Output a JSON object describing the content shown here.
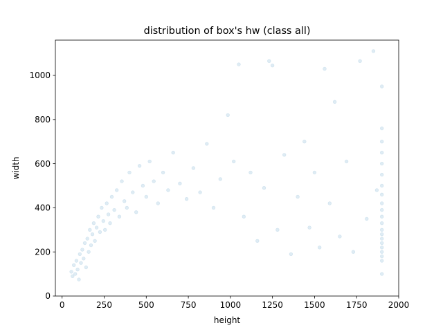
{
  "chart_data": {
    "type": "scatter",
    "title": "distribution of box's hw (class all)",
    "xlabel": "height",
    "ylabel": "width",
    "xlim": [
      -40,
      2000
    ],
    "ylim": [
      0,
      1160
    ],
    "xticks": [
      0,
      250,
      500,
      750,
      1000,
      1250,
      1500,
      1750,
      2000
    ],
    "yticks": [
      0,
      200,
      400,
      600,
      800,
      1000
    ],
    "grid": false,
    "legend": "none",
    "color": "#1f77b4",
    "alpha": 0.15,
    "points": [
      {
        "x": 55,
        "y": 110
      },
      {
        "x": 62,
        "y": 90
      },
      {
        "x": 70,
        "y": 140
      },
      {
        "x": 78,
        "y": 100
      },
      {
        "x": 85,
        "y": 160
      },
      {
        "x": 92,
        "y": 120
      },
      {
        "x": 100,
        "y": 75
      },
      {
        "x": 105,
        "y": 190
      },
      {
        "x": 112,
        "y": 150
      },
      {
        "x": 120,
        "y": 210
      },
      {
        "x": 128,
        "y": 170
      },
      {
        "x": 135,
        "y": 240
      },
      {
        "x": 142,
        "y": 130
      },
      {
        "x": 150,
        "y": 260
      },
      {
        "x": 158,
        "y": 200
      },
      {
        "x": 165,
        "y": 300
      },
      {
        "x": 172,
        "y": 230
      },
      {
        "x": 180,
        "y": 280
      },
      {
        "x": 188,
        "y": 330
      },
      {
        "x": 195,
        "y": 250
      },
      {
        "x": 205,
        "y": 310
      },
      {
        "x": 215,
        "y": 360
      },
      {
        "x": 225,
        "y": 290
      },
      {
        "x": 235,
        "y": 400
      },
      {
        "x": 245,
        "y": 340
      },
      {
        "x": 255,
        "y": 300
      },
      {
        "x": 265,
        "y": 420
      },
      {
        "x": 275,
        "y": 370
      },
      {
        "x": 285,
        "y": 330
      },
      {
        "x": 295,
        "y": 450
      },
      {
        "x": 310,
        "y": 390
      },
      {
        "x": 325,
        "y": 480
      },
      {
        "x": 340,
        "y": 360
      },
      {
        "x": 355,
        "y": 520
      },
      {
        "x": 370,
        "y": 430
      },
      {
        "x": 385,
        "y": 400
      },
      {
        "x": 400,
        "y": 560
      },
      {
        "x": 420,
        "y": 470
      },
      {
        "x": 440,
        "y": 380
      },
      {
        "x": 460,
        "y": 590
      },
      {
        "x": 480,
        "y": 500
      },
      {
        "x": 500,
        "y": 450
      },
      {
        "x": 520,
        "y": 610
      },
      {
        "x": 545,
        "y": 520
      },
      {
        "x": 570,
        "y": 420
      },
      {
        "x": 600,
        "y": 560
      },
      {
        "x": 630,
        "y": 480
      },
      {
        "x": 660,
        "y": 650
      },
      {
        "x": 700,
        "y": 510
      },
      {
        "x": 740,
        "y": 440
      },
      {
        "x": 780,
        "y": 580
      },
      {
        "x": 820,
        "y": 470
      },
      {
        "x": 860,
        "y": 690
      },
      {
        "x": 900,
        "y": 400
      },
      {
        "x": 940,
        "y": 530
      },
      {
        "x": 985,
        "y": 820
      },
      {
        "x": 1020,
        "y": 610
      },
      {
        "x": 1050,
        "y": 1050
      },
      {
        "x": 1080,
        "y": 360
      },
      {
        "x": 1120,
        "y": 560
      },
      {
        "x": 1160,
        "y": 250
      },
      {
        "x": 1200,
        "y": 490
      },
      {
        "x": 1230,
        "y": 1065
      },
      {
        "x": 1250,
        "y": 1045
      },
      {
        "x": 1280,
        "y": 300
      },
      {
        "x": 1320,
        "y": 640
      },
      {
        "x": 1360,
        "y": 190
      },
      {
        "x": 1400,
        "y": 450
      },
      {
        "x": 1440,
        "y": 700
      },
      {
        "x": 1470,
        "y": 310
      },
      {
        "x": 1500,
        "y": 560
      },
      {
        "x": 1530,
        "y": 220
      },
      {
        "x": 1560,
        "y": 1030
      },
      {
        "x": 1590,
        "y": 420
      },
      {
        "x": 1620,
        "y": 880
      },
      {
        "x": 1650,
        "y": 270
      },
      {
        "x": 1690,
        "y": 610
      },
      {
        "x": 1730,
        "y": 200
      },
      {
        "x": 1770,
        "y": 1065
      },
      {
        "x": 1810,
        "y": 350
      },
      {
        "x": 1850,
        "y": 1110
      },
      {
        "x": 1870,
        "y": 480
      },
      {
        "x": 1900,
        "y": 950
      },
      {
        "x": 1900,
        "y": 760
      },
      {
        "x": 1900,
        "y": 700
      },
      {
        "x": 1900,
        "y": 650
      },
      {
        "x": 1900,
        "y": 600
      },
      {
        "x": 1900,
        "y": 550
      },
      {
        "x": 1900,
        "y": 500
      },
      {
        "x": 1900,
        "y": 460
      },
      {
        "x": 1900,
        "y": 420
      },
      {
        "x": 1900,
        "y": 390
      },
      {
        "x": 1900,
        "y": 360
      },
      {
        "x": 1900,
        "y": 330
      },
      {
        "x": 1900,
        "y": 300
      },
      {
        "x": 1900,
        "y": 280
      },
      {
        "x": 1900,
        "y": 260
      },
      {
        "x": 1900,
        "y": 240
      },
      {
        "x": 1900,
        "y": 220
      },
      {
        "x": 1900,
        "y": 200
      },
      {
        "x": 1900,
        "y": 180
      },
      {
        "x": 1900,
        "y": 160
      },
      {
        "x": 1900,
        "y": 100
      }
    ]
  }
}
